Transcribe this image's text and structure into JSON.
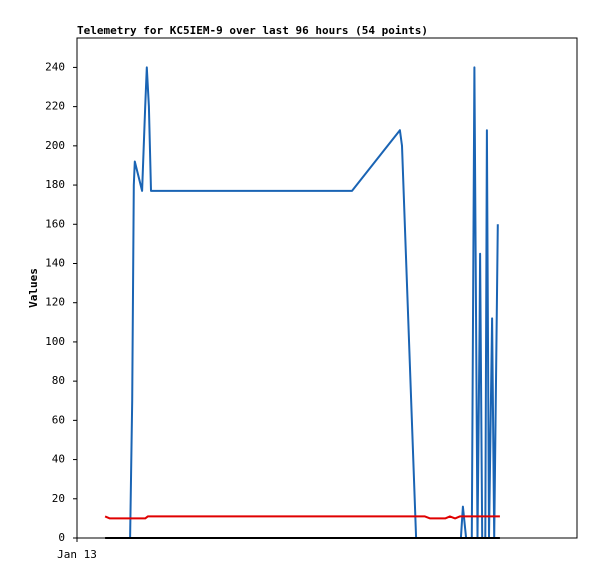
{
  "chart_data": {
    "type": "line",
    "title": "Telemetry for KC5IEM-9 over last 96 hours (54 points)",
    "ylabel": "Values",
    "xlim": [
      0,
      96
    ],
    "xticks": [
      {
        "value": 0,
        "label": "Jan 13"
      }
    ],
    "ylim": [
      0,
      255
    ],
    "yticks": [
      0,
      20,
      40,
      60,
      80,
      100,
      120,
      140,
      160,
      180,
      200,
      220,
      240
    ],
    "grid": false,
    "series": [
      {
        "color": "#1a64b4",
        "x": [
          10.2,
          10.6,
          10.9,
          11.1,
          12.5,
          13.1,
          13.4,
          13.8,
          14.2,
          52.8,
          62.0,
          62.4,
          65.1,
          73.7,
          74.1,
          74.7,
          75.8,
          76.3,
          76.9,
          77.3,
          77.4,
          77.8,
          78.4,
          78.7,
          79.1,
          79.7,
          80.1,
          80.8
        ],
        "values": [
          0,
          70,
          180,
          192,
          177,
          220,
          240,
          220,
          177,
          177,
          208,
          200,
          0,
          0,
          16,
          0,
          0,
          240,
          0,
          108,
          145,
          0,
          0,
          208,
          0,
          112,
          0,
          160
        ]
      },
      {
        "color": "#e00000",
        "x": [
          5.4,
          6.3,
          13.1,
          13.6,
          66.8,
          67.8,
          70.7,
          71.6,
          72.6,
          73.5,
          81.2
        ],
        "values": [
          11,
          10,
          10,
          11,
          11,
          10,
          10,
          11,
          10,
          11,
          11
        ]
      },
      {
        "color": "#000000",
        "x": [
          5.4,
          81.2
        ],
        "values": [
          0,
          0
        ]
      }
    ]
  }
}
